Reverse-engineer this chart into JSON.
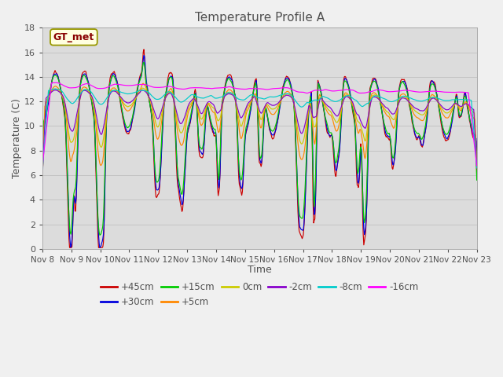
{
  "title": "Temperature Profile A",
  "xlabel": "Time",
  "ylabel": "Temperature (C)",
  "annotation": "GT_met",
  "ylim": [
    0,
    18
  ],
  "series_labels": [
    "+45cm",
    "+30cm",
    "+15cm",
    "+5cm",
    "0cm",
    "-2cm",
    "-8cm",
    "-16cm"
  ],
  "series_colors": [
    "#cc0000",
    "#0000dd",
    "#00cc00",
    "#ff8800",
    "#cccc00",
    "#8800cc",
    "#00cccc",
    "#ff00ff"
  ],
  "fig_color": "#f0f0f0",
  "bg_color": "#dcdcdc",
  "grid_color": "#c0c0c0",
  "title_color": "#505050",
  "tick_color": "#505050",
  "ann_text_color": "#880000",
  "ann_bg": "#ffffe0",
  "ann_edge": "#999900",
  "xtick_labels": [
    "Nov 8",
    "Nov 9",
    "Nov 10",
    "Nov 11",
    "Nov 12",
    "Nov 13",
    "Nov 14",
    "Nov 15",
    "Nov 16",
    "Nov 17",
    "Nov 18",
    "Nov 19",
    "Nov 20",
    "Nov 21",
    "Nov 22",
    "Nov 23"
  ]
}
